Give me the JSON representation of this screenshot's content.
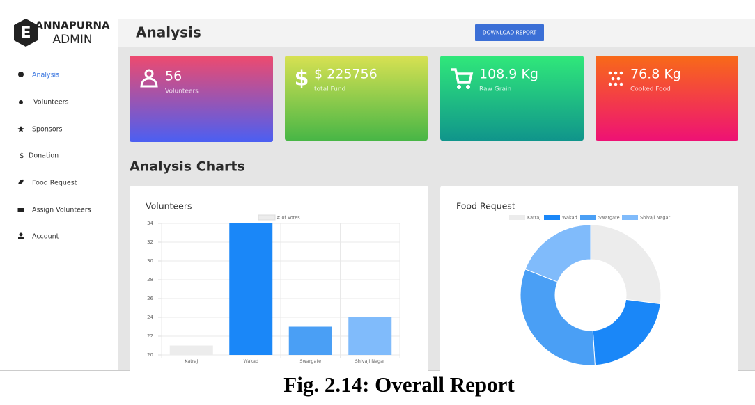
{
  "brand": {
    "logo_letter": "E",
    "line1": "ANNAPURNA",
    "line2": "ADMIN"
  },
  "header": {
    "title": "Analysis",
    "button": "DOWNLOAD REPORT"
  },
  "sidebar": {
    "items": [
      "Analysis",
      "Volunteers",
      "Sponsors",
      "Donation",
      "Food Request",
      "Assign Volunteers",
      "Account"
    ]
  },
  "stats": [
    {
      "value": "56",
      "label": "Volunteers"
    },
    {
      "value": "$ 225756",
      "label": "total Fund"
    },
    {
      "value": "108.9 Kg",
      "label": "Raw Grain"
    },
    {
      "value": "76.8 Kg",
      "label": "Cooked Food"
    }
  ],
  "section_title": "Analysis Charts",
  "chart_data": [
    {
      "type": "bar",
      "title": "Volunteers",
      "categories": [
        "Katraj",
        "Wakad",
        "Swargate",
        "Shivaji Nagar"
      ],
      "series": [
        {
          "name": "# of Votes",
          "colors": [
            "#ececec",
            "#1a87f8",
            "#4a9ff5",
            "#80bbfb"
          ],
          "values": [
            21,
            34,
            23,
            24
          ]
        }
      ],
      "ylim": [
        20,
        34
      ],
      "yticks": [
        20,
        22,
        24,
        26,
        28,
        30,
        32,
        34
      ],
      "grid": true
    },
    {
      "type": "doughnut",
      "title": "Food Request",
      "categories": [
        "Katraj",
        "Wakad",
        "Swargate",
        "Shivaji Nagar"
      ],
      "colors": [
        "#ececec",
        "#1a87f8",
        "#4a9ff5",
        "#80bbfb"
      ],
      "values": [
        27,
        22,
        32,
        19
      ]
    }
  ],
  "caption": "Fig. 2.14: Overall Report"
}
